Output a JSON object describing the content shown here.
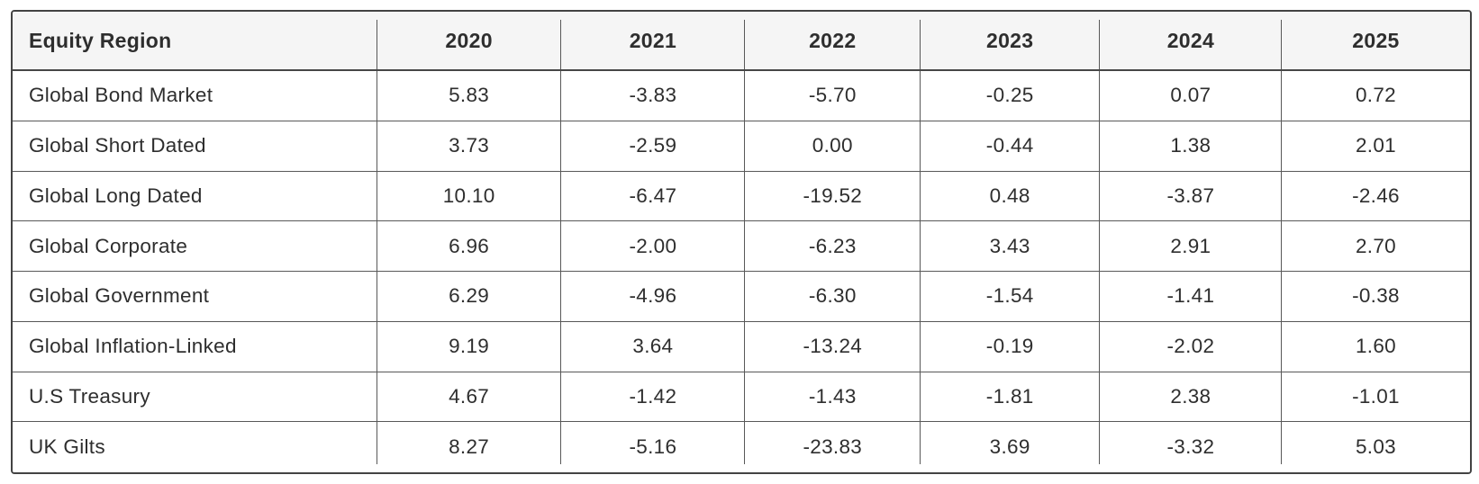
{
  "table": {
    "columns": [
      "Equity Region",
      "2020",
      "2021",
      "2022",
      "2023",
      "2024",
      "2025"
    ],
    "rows": [
      {
        "label": "Global Bond Market",
        "values": [
          "5.83",
          "-3.83",
          "-5.70",
          "-0.25",
          "0.07",
          "0.72"
        ]
      },
      {
        "label": "Global Short Dated",
        "values": [
          "3.73",
          "-2.59",
          "0.00",
          "-0.44",
          "1.38",
          "2.01"
        ]
      },
      {
        "label": "Global Long Dated",
        "values": [
          "10.10",
          "-6.47",
          "-19.52",
          "0.48",
          "-3.87",
          "-2.46"
        ]
      },
      {
        "label": "Global Corporate",
        "values": [
          "6.96",
          "-2.00",
          "-6.23",
          "3.43",
          "2.91",
          "2.70"
        ]
      },
      {
        "label": "Global Government",
        "values": [
          "6.29",
          "-4.96",
          "-6.30",
          "-1.54",
          "-1.41",
          "-0.38"
        ]
      },
      {
        "label": "Global Inflation-Linked",
        "values": [
          "9.19",
          "3.64",
          "-13.24",
          "-0.19",
          "-2.02",
          "1.60"
        ]
      },
      {
        "label": "U.S Treasury",
        "values": [
          "4.67",
          "-1.42",
          "-1.43",
          "-1.81",
          "2.38",
          "-1.01"
        ]
      },
      {
        "label": "UK Gilts",
        "values": [
          "8.27",
          "-5.16",
          "-23.83",
          "3.69",
          "-3.32",
          "5.03"
        ]
      }
    ]
  },
  "chart_data": {
    "type": "table",
    "columns": [
      "Equity Region",
      "2020",
      "2021",
      "2022",
      "2023",
      "2024",
      "2025"
    ],
    "categories": [
      "2020",
      "2021",
      "2022",
      "2023",
      "2024",
      "2025"
    ],
    "series": [
      {
        "name": "Global Bond Market",
        "values": [
          5.83,
          -3.83,
          -5.7,
          -0.25,
          0.07,
          0.72
        ]
      },
      {
        "name": "Global Short Dated",
        "values": [
          3.73,
          -2.59,
          0.0,
          -0.44,
          1.38,
          2.01
        ]
      },
      {
        "name": "Global Long Dated",
        "values": [
          10.1,
          -6.47,
          -19.52,
          0.48,
          -3.87,
          -2.46
        ]
      },
      {
        "name": "Global Corporate",
        "values": [
          6.96,
          -2.0,
          -6.23,
          3.43,
          2.91,
          2.7
        ]
      },
      {
        "name": "Global Government",
        "values": [
          6.29,
          -4.96,
          -6.3,
          -1.54,
          -1.41,
          -0.38
        ]
      },
      {
        "name": "Global Inflation-Linked",
        "values": [
          9.19,
          3.64,
          -13.24,
          -0.19,
          -2.02,
          1.6
        ]
      },
      {
        "name": "U.S Treasury",
        "values": [
          4.67,
          -1.42,
          -1.43,
          -1.81,
          2.38,
          -1.01
        ]
      },
      {
        "name": "UK Gilts",
        "values": [
          8.27,
          -5.16,
          -23.83,
          3.69,
          -3.32,
          5.03
        ]
      }
    ]
  },
  "colors": {
    "header_background": "#f5f5f5",
    "outer_border": "#434343",
    "grid_line": "#585858",
    "text": "#2e2e2e",
    "page_background": "#ffffff"
  }
}
